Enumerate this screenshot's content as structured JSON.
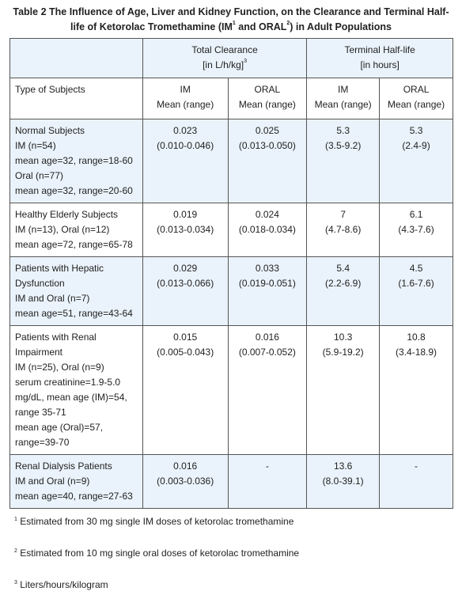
{
  "title": {
    "text_before": "Table 2 The Influence of Age, Liver and Kidney Function, on the Clearance and Terminal Half-life of Ketorolac Tromethamine (IM",
    "sup_1": "1",
    "text_middle": " and ORAL",
    "sup_2": "2",
    "text_after": ") in Adult Populations"
  },
  "table": {
    "header_groups": [
      {
        "text": "Total Clearance",
        "unit": "[in L/h/kg]",
        "unit_sup": "3"
      },
      {
        "text": "Terminal Half-life",
        "unit": "[in hours]"
      }
    ],
    "subheader": {
      "label": "Type of Subjects",
      "columns": [
        [
          "IM",
          "Mean (range)"
        ],
        [
          "ORAL",
          "Mean (range)"
        ],
        [
          "IM",
          "Mean (range)"
        ],
        [
          "ORAL",
          "Mean (range)"
        ]
      ]
    },
    "rows": [
      {
        "subject": [
          "Normal Subjects",
          "IM (n=54)",
          "mean age=32, range=18-60",
          "Oral (n=77)",
          "mean age=32, range=20-60"
        ],
        "values": [
          [
            "0.023",
            "(0.010-0.046)"
          ],
          [
            "0.025",
            "(0.013-0.050)"
          ],
          [
            "5.3",
            "(3.5-9.2)"
          ],
          [
            "5.3",
            "(2.4-9)"
          ]
        ]
      },
      {
        "subject": [
          "Healthy Elderly Subjects",
          "IM (n=13), Oral (n=12)",
          "mean age=72, range=65-78"
        ],
        "values": [
          [
            "0.019",
            "(0.013-0.034)"
          ],
          [
            "0.024",
            "(0.018-0.034)"
          ],
          [
            "7",
            "(4.7-8.6)"
          ],
          [
            "6.1",
            "(4.3-7.6)"
          ]
        ]
      },
      {
        "subject": [
          "Patients with Hepatic",
          "Dysfunction",
          "IM and Oral (n=7)",
          "mean age=51, range=43-64"
        ],
        "values": [
          [
            "0.029",
            "(0.013-0.066)"
          ],
          [
            "0.033",
            "(0.019-0.051)"
          ],
          [
            "5.4",
            "(2.2-6.9)"
          ],
          [
            "4.5",
            "(1.6-7.6)"
          ]
        ]
      },
      {
        "subject": [
          "Patients with Renal",
          "Impairment",
          "IM (n=25), Oral (n=9)",
          "serum creatinine=1.9-5.0",
          "mg/dL, mean age (IM)=54,",
          "range 35-71",
          "mean age (Oral)=57,",
          "range=39-70"
        ],
        "values": [
          [
            "0.015",
            "(0.005-0.043)"
          ],
          [
            "0.016",
            "(0.007-0.052)"
          ],
          [
            "10.3",
            "(5.9-19.2)"
          ],
          [
            "10.8",
            "(3.4-18.9)"
          ]
        ]
      },
      {
        "subject": [
          "Renal Dialysis Patients",
          "IM and Oral (n=9)",
          "mean age=40, range=27-63"
        ],
        "values": [
          [
            "0.016",
            "(0.003-0.036)"
          ],
          [
            "-"
          ],
          [
            "13.6",
            "(8.0-39.1)"
          ],
          [
            "-"
          ]
        ]
      }
    ]
  },
  "footnotes": [
    {
      "mark": "1",
      "text": "Estimated from 30 mg single IM doses of ketorolac tromethamine"
    },
    {
      "mark": "2",
      "text": "Estimated from 10 mg single oral doses of ketorolac tromethamine"
    },
    {
      "mark": "3",
      "text": "Liters/hours/kilogram"
    }
  ]
}
